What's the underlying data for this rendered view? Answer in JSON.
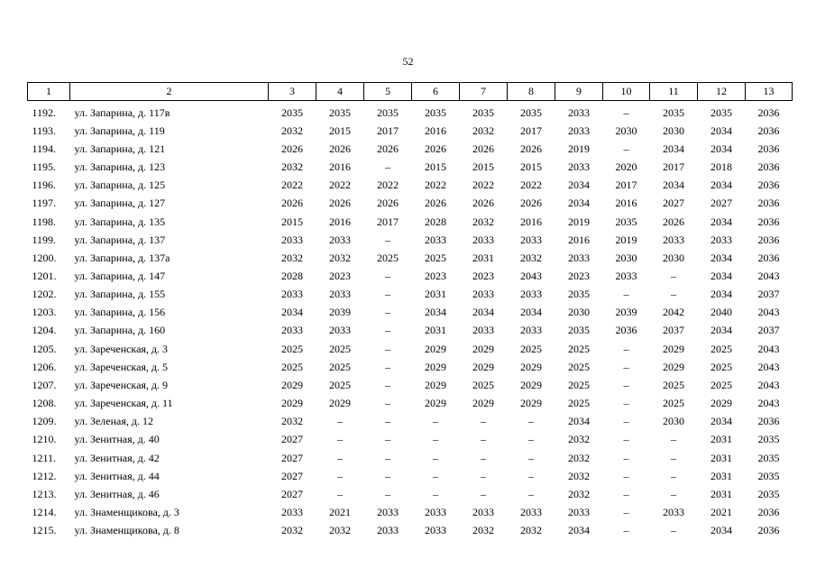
{
  "page_number": "52",
  "table": {
    "header": [
      "1",
      "2",
      "3",
      "4",
      "5",
      "6",
      "7",
      "8",
      "9",
      "10",
      "11",
      "12",
      "13"
    ],
    "rows": [
      [
        "1192.",
        "ул. Запарина, д. 117в",
        "2035",
        "2035",
        "2035",
        "2035",
        "2035",
        "2035",
        "2033",
        "–",
        "2035",
        "2035",
        "2036"
      ],
      [
        "1193.",
        "ул. Запарина, д. 119",
        "2032",
        "2015",
        "2017",
        "2016",
        "2032",
        "2017",
        "2033",
        "2030",
        "2030",
        "2034",
        "2036"
      ],
      [
        "1194.",
        "ул. Запарина, д. 121",
        "2026",
        "2026",
        "2026",
        "2026",
        "2026",
        "2026",
        "2019",
        "–",
        "2034",
        "2034",
        "2036"
      ],
      [
        "1195.",
        "ул. Запарина, д. 123",
        "2032",
        "2016",
        "–",
        "2015",
        "2015",
        "2015",
        "2033",
        "2020",
        "2017",
        "2018",
        "2036"
      ],
      [
        "1196.",
        "ул. Запарина, д. 125",
        "2022",
        "2022",
        "2022",
        "2022",
        "2022",
        "2022",
        "2034",
        "2017",
        "2034",
        "2034",
        "2036"
      ],
      [
        "1197.",
        "ул. Запарина, д. 127",
        "2026",
        "2026",
        "2026",
        "2026",
        "2026",
        "2026",
        "2034",
        "2016",
        "2027",
        "2027",
        "2036"
      ],
      [
        "1198.",
        "ул. Запарина, д. 135",
        "2015",
        "2016",
        "2017",
        "2028",
        "2032",
        "2016",
        "2019",
        "2035",
        "2026",
        "2034",
        "2036"
      ],
      [
        "1199.",
        "ул. Запарина, д. 137",
        "2033",
        "2033",
        "–",
        "2033",
        "2033",
        "2033",
        "2016",
        "2019",
        "2033",
        "2033",
        "2036"
      ],
      [
        "1200.",
        "ул. Запарина, д. 137а",
        "2032",
        "2032",
        "2025",
        "2025",
        "2031",
        "2032",
        "2033",
        "2030",
        "2030",
        "2034",
        "2036"
      ],
      [
        "1201.",
        "ул. Запарина, д. 147",
        "2028",
        "2023",
        "–",
        "2023",
        "2023",
        "2043",
        "2023",
        "2033",
        "–",
        "2034",
        "2043"
      ],
      [
        "1202.",
        "ул. Запарина, д. 155",
        "2033",
        "2033",
        "–",
        "2031",
        "2033",
        "2033",
        "2035",
        "–",
        "–",
        "2034",
        "2037"
      ],
      [
        "1203.",
        "ул. Запарина, д. 156",
        "2034",
        "2039",
        "–",
        "2034",
        "2034",
        "2034",
        "2030",
        "2039",
        "2042",
        "2040",
        "2043"
      ],
      [
        "1204.",
        "ул. Запарина, д. 160",
        "2033",
        "2033",
        "–",
        "2031",
        "2033",
        "2033",
        "2035",
        "2036",
        "2037",
        "2034",
        "2037"
      ],
      [
        "1205.",
        "ул. Зареченская, д. 3",
        "2025",
        "2025",
        "–",
        "2029",
        "2029",
        "2025",
        "2025",
        "–",
        "2029",
        "2025",
        "2043"
      ],
      [
        "1206.",
        "ул. Зареченская, д. 5",
        "2025",
        "2025",
        "–",
        "2029",
        "2029",
        "2029",
        "2025",
        "–",
        "2029",
        "2025",
        "2043"
      ],
      [
        "1207.",
        "ул. Зареченская, д. 9",
        "2029",
        "2025",
        "–",
        "2029",
        "2025",
        "2029",
        "2025",
        "–",
        "2025",
        "2025",
        "2043"
      ],
      [
        "1208.",
        "ул. Зареченская, д. 11",
        "2029",
        "2029",
        "–",
        "2029",
        "2029",
        "2029",
        "2025",
        "–",
        "2025",
        "2029",
        "2043"
      ],
      [
        "1209.",
        "ул. Зеленая, д. 12",
        "2032",
        "–",
        "–",
        "–",
        "–",
        "–",
        "2034",
        "–",
        "2030",
        "2034",
        "2036"
      ],
      [
        "1210.",
        "ул. Зенитная, д. 40",
        "2027",
        "–",
        "–",
        "–",
        "–",
        "–",
        "2032",
        "–",
        "–",
        "2031",
        "2035"
      ],
      [
        "1211.",
        "ул. Зенитная, д. 42",
        "2027",
        "–",
        "–",
        "–",
        "–",
        "–",
        "2032",
        "–",
        "–",
        "2031",
        "2035"
      ],
      [
        "1212.",
        "ул. Зенитная, д. 44",
        "2027",
        "–",
        "–",
        "–",
        "–",
        "–",
        "2032",
        "–",
        "–",
        "2031",
        "2035"
      ],
      [
        "1213.",
        "ул. Зенитная, д. 46",
        "2027",
        "–",
        "–",
        "–",
        "–",
        "–",
        "2032",
        "–",
        "–",
        "2031",
        "2035"
      ],
      [
        "1214.",
        "ул. Знаменщикова, д. 3",
        "2033",
        "2021",
        "2033",
        "2033",
        "2033",
        "2033",
        "2033",
        "–",
        "2033",
        "2021",
        "2036"
      ],
      [
        "1215.",
        "ул. Знаменщикова, д. 8",
        "2032",
        "2032",
        "2033",
        "2033",
        "2032",
        "2032",
        "2034",
        "–",
        "–",
        "2034",
        "2036"
      ]
    ]
  }
}
